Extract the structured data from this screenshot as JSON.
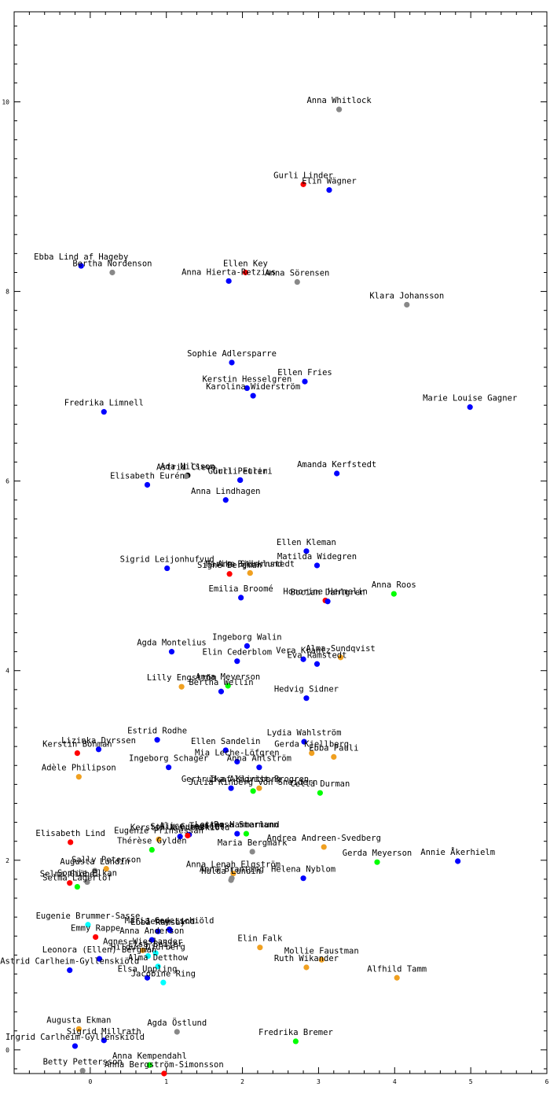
{
  "chart_data": {
    "type": "scatter",
    "title": "",
    "xlabel": "",
    "ylabel": "",
    "xlim": [
      -1,
      6
    ],
    "ylim": [
      -0.25,
      10.95
    ],
    "grid": false,
    "x_ticks": [
      0,
      1,
      2,
      3,
      4,
      5,
      6
    ],
    "y_ticks": [
      0,
      2,
      4,
      6,
      8,
      10
    ],
    "colors": {
      "red": "#ff0000",
      "blue": "#0000ff",
      "orange": "#f0a020",
      "green": "#00ff00",
      "gray": "#888888",
      "cyan": "#00ffff",
      "black": "#000000"
    },
    "points": [
      {
        "label": "Anna Whitlock",
        "x": 3.27,
        "y": 9.92,
        "color": "gray"
      },
      {
        "label": "Gurli Linder",
        "x": 2.8,
        "y": 9.13,
        "color": "red"
      },
      {
        "label": "Elin Wägner",
        "x": 3.14,
        "y": 9.07,
        "color": "blue"
      },
      {
        "label": "Ebba Lind af Hageby",
        "x": -0.12,
        "y": 8.27,
        "color": "blue"
      },
      {
        "label": "Bertha Nordenson",
        "x": 0.29,
        "y": 8.2,
        "color": "gray"
      },
      {
        "label": "Ellen Key",
        "x": 2.04,
        "y": 8.2,
        "color": "red"
      },
      {
        "label": "Anna Hierta-Retzius",
        "x": 1.82,
        "y": 8.11,
        "color": "blue"
      },
      {
        "label": "Anna Sörensen",
        "x": 2.72,
        "y": 8.1,
        "color": "gray"
      },
      {
        "label": "Klara Johansson",
        "x": 4.16,
        "y": 7.86,
        "color": "gray"
      },
      {
        "label": "Sophie Adlersparre",
        "x": 1.86,
        "y": 7.25,
        "color": "blue"
      },
      {
        "label": "Ellen Fries",
        "x": 2.82,
        "y": 7.05,
        "color": "blue"
      },
      {
        "label": "Kerstin Hesselgren",
        "x": 2.06,
        "y": 6.98,
        "color": "blue"
      },
      {
        "label": "Karolina Widerström",
        "x": 2.14,
        "y": 6.9,
        "color": "blue"
      },
      {
        "label": "Marie Louise Gagner",
        "x": 4.99,
        "y": 6.78,
        "color": "blue"
      },
      {
        "label": "Fredrika Limnell",
        "x": 0.18,
        "y": 6.73,
        "color": "blue"
      },
      {
        "label": "Amanda Kerfstedt",
        "x": 3.24,
        "y": 6.08,
        "color": "blue"
      },
      {
        "label": "Ada Nilsson",
        "x": 1.28,
        "y": 6.06,
        "color": "black"
      },
      {
        "label": "Astrid Cleve",
        "x": 1.26,
        "y": 6.05,
        "color": "gray"
      },
      {
        "label": "Gurli Euler",
        "x": 1.97,
        "y": 6.01,
        "color": "blue"
      },
      {
        "label": "Gurli Petrini",
        "x": 1.97,
        "y": 6.01,
        "color": "blue"
      },
      {
        "label": "Elisabeth Eurén",
        "x": 0.75,
        "y": 5.96,
        "color": "blue"
      },
      {
        "label": "Anna Lindhagen",
        "x": 1.78,
        "y": 5.8,
        "color": "blue"
      },
      {
        "label": "Ellen Kleman",
        "x": 2.84,
        "y": 5.26,
        "color": "blue"
      },
      {
        "label": "Matilda Widegren",
        "x": 2.98,
        "y": 5.11,
        "color": "blue"
      },
      {
        "label": "Sigrid Leijonhufvud",
        "x": 1.01,
        "y": 5.08,
        "color": "blue"
      },
      {
        "label": "Signe Bergman",
        "x": 1.83,
        "y": 5.02,
        "color": "red"
      },
      {
        "label": "Ann Björklund",
        "x": 2.1,
        "y": 5.03,
        "color": "orange"
      },
      {
        "label": "Marika Stiernstedt",
        "x": 2.1,
        "y": 5.03,
        "color": "orange"
      },
      {
        "label": "Anna Roos",
        "x": 3.99,
        "y": 4.81,
        "color": "green"
      },
      {
        "label": "Emilia Broomé",
        "x": 1.98,
        "y": 4.77,
        "color": "blue"
      },
      {
        "label": "Honorine Hermelin",
        "x": 3.09,
        "y": 4.74,
        "color": "red"
      },
      {
        "label": "Bocian Dahlgren",
        "x": 3.12,
        "y": 4.73,
        "color": "blue"
      },
      {
        "label": "Ingeborg Walin",
        "x": 2.06,
        "y": 4.26,
        "color": "blue"
      },
      {
        "label": "Agda Montelius",
        "x": 1.07,
        "y": 4.2,
        "color": "blue"
      },
      {
        "label": "Alma Sundqvist",
        "x": 3.29,
        "y": 4.14,
        "color": "orange"
      },
      {
        "label": "Vera Krantz",
        "x": 2.8,
        "y": 4.12,
        "color": "blue"
      },
      {
        "label": "Eva Ramstedt",
        "x": 2.98,
        "y": 4.07,
        "color": "blue"
      },
      {
        "label": "Elin Cederblom",
        "x": 1.93,
        "y": 4.1,
        "color": "blue"
      },
      {
        "label": "Lilly Engström",
        "x": 1.2,
        "y": 3.83,
        "color": "orange"
      },
      {
        "label": "Anna Meyerson",
        "x": 1.81,
        "y": 3.84,
        "color": "green"
      },
      {
        "label": "Bertha Wellin",
        "x": 1.72,
        "y": 3.78,
        "color": "blue"
      },
      {
        "label": "Hedvig Sidner",
        "x": 2.84,
        "y": 3.71,
        "color": "blue"
      },
      {
        "label": "Estrid Rodhe",
        "x": 0.88,
        "y": 3.27,
        "color": "blue"
      },
      {
        "label": "Lydia Wahlström",
        "x": 2.81,
        "y": 3.25,
        "color": "blue"
      },
      {
        "label": "Lizinka Dyrssen",
        "x": 0.11,
        "y": 3.17,
        "color": "blue"
      },
      {
        "label": "Ellen Sandelin",
        "x": 1.78,
        "y": 3.16,
        "color": "blue"
      },
      {
        "label": "Gerda Kjellberg",
        "x": 2.91,
        "y": 3.13,
        "color": "orange"
      },
      {
        "label": "Kerstin Bohman",
        "x": -0.17,
        "y": 3.13,
        "color": "red"
      },
      {
        "label": "Ebba Pauli",
        "x": 3.2,
        "y": 3.09,
        "color": "orange"
      },
      {
        "label": "Mia Leche-Löfgren",
        "x": 1.93,
        "y": 3.04,
        "color": "blue"
      },
      {
        "label": "Ingeborg Schager",
        "x": 1.03,
        "y": 2.98,
        "color": "blue"
      },
      {
        "label": "Anna Ahlström",
        "x": 2.22,
        "y": 2.98,
        "color": "blue"
      },
      {
        "label": "Adèle Philipson",
        "x": -0.15,
        "y": 2.88,
        "color": "orange"
      },
      {
        "label": "Gertrud af Klintberg",
        "x": 1.85,
        "y": 2.76,
        "color": "blue"
      },
      {
        "label": "Ika Almgvist-Brogren",
        "x": 2.22,
        "y": 2.76,
        "color": "orange"
      },
      {
        "label": "Julia Kinberg von Sneidern",
        "x": 2.14,
        "y": 2.73,
        "color": "green"
      },
      {
        "label": "Cella Durman",
        "x": 3.02,
        "y": 2.71,
        "color": "green"
      },
      {
        "label": "Lotten Hammarlund",
        "x": 1.93,
        "y": 2.28,
        "color": "blue"
      },
      {
        "label": "Alice Tegnér",
        "x": 1.3,
        "y": 2.27,
        "color": "blue"
      },
      {
        "label": "Sofia Gumaelius",
        "x": 1.28,
        "y": 2.26,
        "color": "red"
      },
      {
        "label": "Rosa Stermann",
        "x": 2.05,
        "y": 2.28,
        "color": "green"
      },
      {
        "label": "Kerstin Nordenskiöld",
        "x": 1.18,
        "y": 2.25,
        "color": "blue"
      },
      {
        "label": "Andrea Andreen-Svedberg",
        "x": 3.07,
        "y": 2.14,
        "color": "orange"
      },
      {
        "label": "Elisabeth Lind",
        "x": -0.26,
        "y": 2.19,
        "color": "red"
      },
      {
        "label": "Eugenie Prinsessan",
        "x": 0.9,
        "y": 2.22,
        "color": "orange"
      },
      {
        "label": "Maria Bergmark",
        "x": 2.13,
        "y": 2.09,
        "color": "gray"
      },
      {
        "label": "Gerda Meyerson",
        "x": 3.77,
        "y": 1.98,
        "color": "green"
      },
      {
        "label": "Annie Åkerhielm",
        "x": 4.83,
        "y": 1.99,
        "color": "blue"
      },
      {
        "label": "Thérèse Gyldén",
        "x": 0.81,
        "y": 2.11,
        "color": "green"
      },
      {
        "label": "Anna Lenah Elgström",
        "x": 1.88,
        "y": 1.86,
        "color": "orange"
      },
      {
        "label": "Anna Branting",
        "x": 1.86,
        "y": 1.81,
        "color": "gray"
      },
      {
        "label": "Sally Peterson",
        "x": 0.21,
        "y": 1.91,
        "color": "orange"
      },
      {
        "label": "Hulda Lundin",
        "x": 1.85,
        "y": 1.79,
        "color": "gray"
      },
      {
        "label": "Helena Nyblom",
        "x": 2.8,
        "y": 1.81,
        "color": "blue"
      },
      {
        "label": "Augusta Lundin",
        "x": 0.06,
        "y": 1.89,
        "color": "gray"
      },
      {
        "label": "Sophie Elkan",
        "x": -0.04,
        "y": 1.77,
        "color": "gray"
      },
      {
        "label": "Selma Giöbel",
        "x": -0.27,
        "y": 1.76,
        "color": "red"
      },
      {
        "label": "Selma Lagerlöf",
        "x": -0.17,
        "y": 1.72,
        "color": "green"
      },
      {
        "label": "Eugenie Brummer-Sasse",
        "x": -0.03,
        "y": 1.32,
        "color": "cyan"
      },
      {
        "label": "Maria Cederschiöld",
        "x": 1.04,
        "y": 1.27,
        "color": "blue"
      },
      {
        "label": "Jenny Lind",
        "x": 1.05,
        "y": 1.26,
        "color": "blue"
      },
      {
        "label": "Emmy Rappe",
        "x": 0.07,
        "y": 1.19,
        "color": "red"
      },
      {
        "label": "Ebba Ramsay",
        "x": 0.89,
        "y": 1.25,
        "color": "blue"
      },
      {
        "label": "Anna Anderson",
        "x": 0.81,
        "y": 1.16,
        "color": "blue"
      },
      {
        "label": "Agnes Wieslander",
        "x": 0.69,
        "y": 1.05,
        "color": "orange"
      },
      {
        "label": "Elsa Beijer",
        "x": 0.86,
        "y": 1.02,
        "color": "cyan"
      },
      {
        "label": "Elin Falk",
        "x": 2.23,
        "y": 1.08,
        "color": "orange"
      },
      {
        "label": "Hildur Djurberg",
        "x": 0.76,
        "y": 0.99,
        "color": "cyan"
      },
      {
        "label": "Mollie Faustman",
        "x": 3.04,
        "y": 0.95,
        "color": "orange"
      },
      {
        "label": "Leonora (Ellen) Bergman",
        "x": 0.12,
        "y": 0.96,
        "color": "blue"
      },
      {
        "label": "Ruth Wikander",
        "x": 2.84,
        "y": 0.87,
        "color": "orange"
      },
      {
        "label": "Alma Detthow",
        "x": 0.89,
        "y": 0.88,
        "color": "cyan"
      },
      {
        "label": "Alfhild Tamm",
        "x": 4.03,
        "y": 0.76,
        "color": "orange"
      },
      {
        "label": "Elsa Uppling",
        "x": 0.75,
        "y": 0.76,
        "color": "blue"
      },
      {
        "label": "Jacobine Ring",
        "x": 0.96,
        "y": 0.71,
        "color": "cyan"
      },
      {
        "label": "Astrid Carlheim-Gyllenskiöld",
        "x": -0.27,
        "y": 0.84,
        "color": "blue"
      },
      {
        "label": "Augusta Ekman",
        "x": -0.15,
        "y": 0.22,
        "color": "orange"
      },
      {
        "label": "Agda Östlund",
        "x": 1.14,
        "y": 0.19,
        "color": "gray"
      },
      {
        "label": "Sigrid Millrath",
        "x": 0.18,
        "y": 0.1,
        "color": "blue"
      },
      {
        "label": "Fredrika Bremer",
        "x": 2.7,
        "y": 0.09,
        "color": "green"
      },
      {
        "label": "Ingrid Carlheim-Gyllenskiöld",
        "x": -0.2,
        "y": 0.04,
        "color": "blue"
      },
      {
        "label": "Anna Kempendahl",
        "x": 0.78,
        "y": -0.16,
        "color": "green"
      },
      {
        "label": "Betty Pettersson",
        "x": -0.1,
        "y": -0.22,
        "color": "gray"
      },
      {
        "label": "Anna Bergström-Simonsson",
        "x": 0.97,
        "y": -0.25,
        "color": "red"
      }
    ]
  }
}
